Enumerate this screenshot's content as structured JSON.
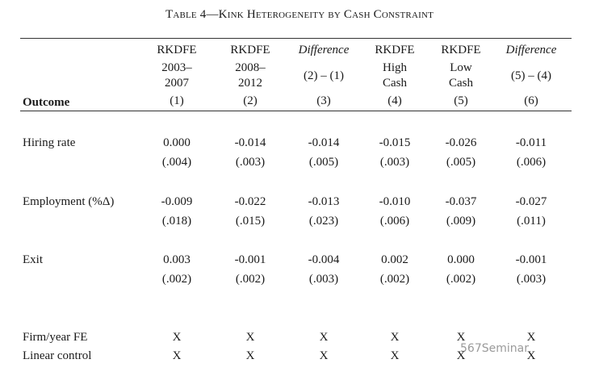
{
  "header": {
    "title": "Table 4—Kink Heterogeneity by Cash Constraint"
  },
  "table": {
    "stub_header": "Outcome",
    "columns": [
      {
        "lines": [
          "RKDFE",
          "2003–",
          "2007"
        ],
        "number": "(1)"
      },
      {
        "lines": [
          "RKDFE",
          "2008–",
          "2012"
        ],
        "number": "(2)"
      },
      {
        "lines": [
          "Difference",
          "(2) – (1)"
        ],
        "number": "(3)"
      },
      {
        "lines": [
          "RKDFE",
          "High",
          "Cash"
        ],
        "number": "(4)"
      },
      {
        "lines": [
          "RKDFE",
          "Low",
          "Cash"
        ],
        "number": "(5)"
      },
      {
        "lines": [
          "Difference",
          "(5) – (4)"
        ],
        "number": "(6)"
      }
    ],
    "rows": [
      {
        "label": "Hiring rate",
        "estimates": [
          "0.000",
          "-0.014",
          "-0.014",
          "-0.015",
          "-0.026",
          "-0.011"
        ],
        "ses": [
          "(.004)",
          "(.003)",
          "(.005)",
          "(.003)",
          "(.005)",
          "(.006)"
        ]
      },
      {
        "label": "Employment (%Δ)",
        "estimates": [
          "-0.009",
          "-0.022",
          "-0.013",
          "-0.010",
          "-0.037",
          "-0.027"
        ],
        "ses": [
          "(.018)",
          "(.015)",
          "(.023)",
          "(.006)",
          "(.009)",
          "(.011)"
        ]
      },
      {
        "label": "Exit",
        "estimates": [
          "0.003",
          "-0.001",
          "-0.004",
          "0.002",
          "0.000",
          "-0.001"
        ],
        "ses": [
          "(.002)",
          "(.002)",
          "(.003)",
          "(.002)",
          "(.002)",
          "(.003)"
        ]
      }
    ],
    "controls": [
      {
        "label": "Firm/year FE",
        "marks": [
          "X",
          "X",
          "X",
          "X",
          "X",
          "X"
        ]
      },
      {
        "label": "Linear control",
        "marks": [
          "X",
          "X",
          "X",
          "X",
          "X",
          "X"
        ]
      }
    ]
  },
  "watermark": "567Seminar"
}
